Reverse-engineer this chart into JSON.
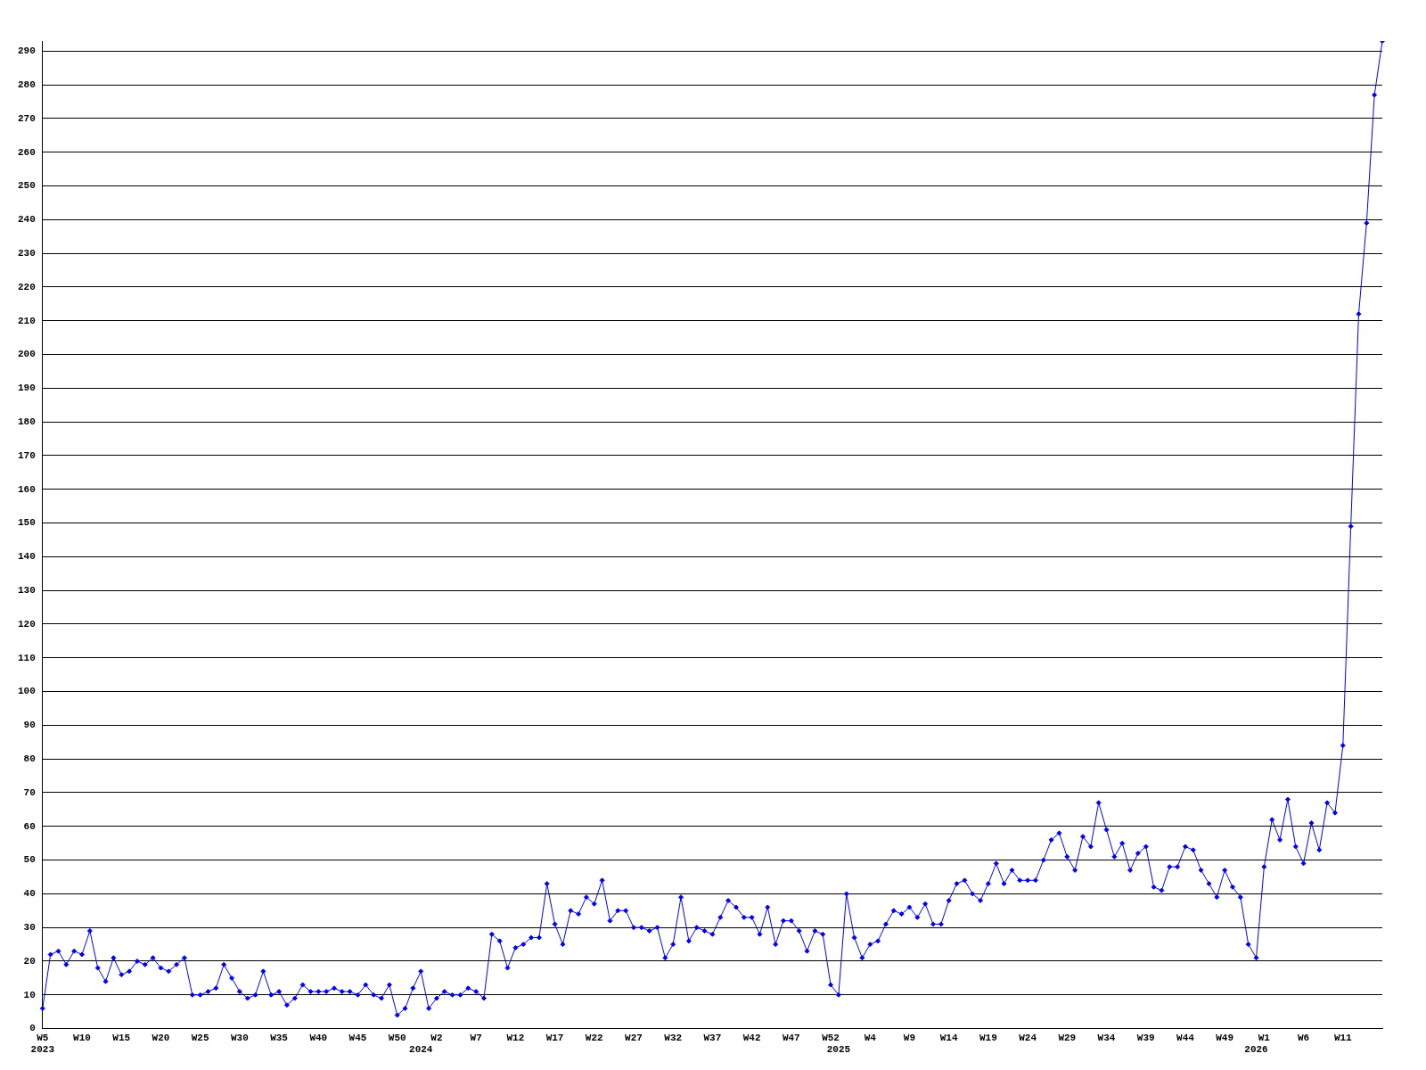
{
  "chart_data": {
    "type": "line",
    "categories": [
      "W5\n2023",
      null,
      null,
      null,
      null,
      "W10",
      null,
      null,
      null,
      null,
      "W15",
      null,
      null,
      null,
      null,
      "W20",
      null,
      null,
      null,
      null,
      "W25",
      null,
      null,
      null,
      null,
      "W30",
      null,
      null,
      null,
      null,
      "W35",
      null,
      null,
      null,
      null,
      "W40",
      null,
      null,
      null,
      null,
      "W45",
      null,
      null,
      null,
      null,
      "W50",
      null,
      null,
      "\n2024",
      null,
      "W2",
      null,
      null,
      null,
      null,
      "W7",
      null,
      null,
      null,
      null,
      "W12",
      null,
      null,
      null,
      null,
      "W17",
      null,
      null,
      null,
      null,
      "W22",
      null,
      null,
      null,
      null,
      "W27",
      null,
      null,
      null,
      null,
      "W32",
      null,
      null,
      null,
      null,
      "W37",
      null,
      null,
      null,
      null,
      "W42",
      null,
      null,
      null,
      null,
      "W47",
      null,
      null,
      null,
      null,
      "W52",
      "\n2025",
      null,
      null,
      null,
      "W4",
      null,
      null,
      null,
      null,
      "W9",
      null,
      null,
      null,
      null,
      "W14",
      null,
      null,
      null,
      null,
      "W19",
      null,
      null,
      null,
      null,
      "W24",
      null,
      null,
      null,
      null,
      "W29",
      null,
      null,
      null,
      null,
      "W34",
      null,
      null,
      null,
      null,
      "W39",
      null,
      null,
      null,
      null,
      "W44",
      null,
      null,
      null,
      null,
      "W49",
      null,
      null,
      null,
      "\n2026",
      "W1",
      null,
      null,
      null,
      null,
      "W6",
      null,
      null,
      null,
      null,
      "W11",
      null,
      null,
      null,
      null,
      null
    ],
    "series": [
      {
        "color": "#0000ff",
        "values": [
          6,
          22,
          23,
          19,
          23,
          22,
          29,
          18,
          14,
          21,
          16,
          17,
          20,
          19,
          21,
          18,
          17,
          19,
          21,
          10,
          10,
          11,
          12,
          19,
          15,
          11,
          9,
          10,
          17,
          10,
          11,
          7,
          9,
          13,
          11,
          11,
          11,
          12,
          11,
          11,
          10,
          13,
          10,
          9,
          13,
          4,
          6,
          12,
          17,
          6,
          9,
          11,
          10,
          10,
          12,
          11,
          9,
          28,
          26,
          18,
          24,
          25,
          27,
          27,
          43,
          31,
          25,
          35,
          34,
          39,
          37,
          44,
          32,
          35,
          35,
          30,
          30,
          29,
          30,
          21,
          25,
          39,
          26,
          30,
          29,
          28,
          33,
          38,
          36,
          33,
          33,
          28,
          36,
          25,
          32,
          32,
          29,
          23,
          29,
          28,
          13,
          10,
          40,
          27,
          21,
          25,
          26,
          31,
          35,
          34,
          36,
          33,
          37,
          31,
          31,
          38,
          43,
          44,
          40,
          38,
          43,
          49,
          43,
          47,
          44,
          44,
          44,
          50,
          56,
          58,
          51,
          47,
          57,
          54,
          67,
          59,
          51,
          55,
          47,
          52,
          54,
          42,
          41,
          48,
          48,
          54,
          53,
          47,
          43,
          39,
          47,
          42,
          39,
          25,
          21,
          48,
          62,
          56,
          68,
          54,
          49,
          61,
          53,
          67,
          64,
          84,
          149,
          212,
          239,
          277,
          293
        ]
      }
    ],
    "ylim": [
      0,
      293
    ],
    "yticks": [
      0,
      10,
      20,
      30,
      40,
      50,
      60,
      70,
      80,
      90,
      100,
      110,
      120,
      130,
      140,
      150,
      160,
      170,
      180,
      190,
      200,
      210,
      220,
      230,
      240,
      250,
      260,
      270,
      280,
      290
    ],
    "grid": "y",
    "marker": "diamond"
  }
}
